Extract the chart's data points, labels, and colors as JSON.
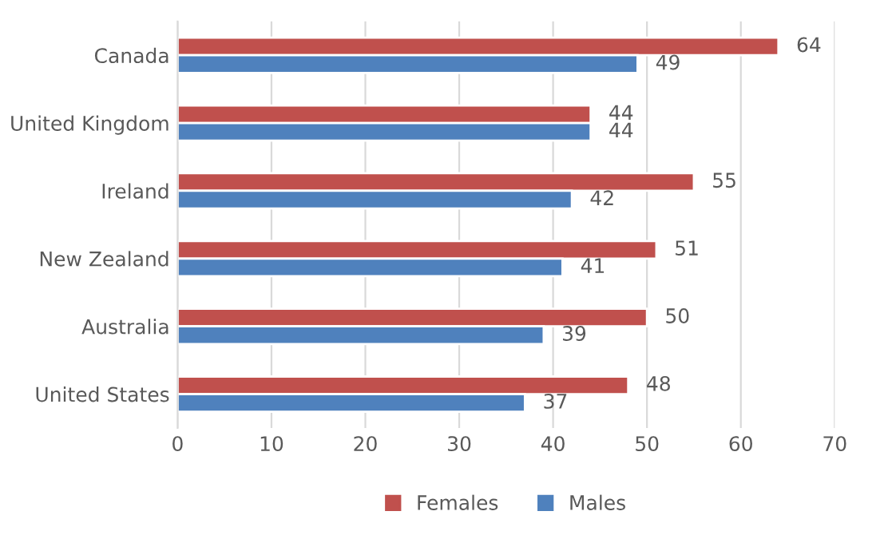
{
  "chart_data": {
    "type": "bar",
    "orientation": "horizontal",
    "categories": [
      "Canada",
      "United Kingdom",
      "Ireland",
      "New Zealand",
      "Australia",
      "United States"
    ],
    "series": [
      {
        "name": "Females",
        "color": "#c0504d",
        "values": [
          64,
          44,
          55,
          51,
          50,
          48
        ]
      },
      {
        "name": "Males",
        "color": "#4f81bd",
        "values": [
          49,
          44,
          42,
          41,
          39,
          37
        ]
      }
    ],
    "xlim": [
      0,
      70
    ],
    "xticks": [
      0,
      10,
      20,
      30,
      40,
      50,
      60,
      70
    ],
    "grid": "x",
    "legend": "bottom",
    "data_labels": true
  }
}
